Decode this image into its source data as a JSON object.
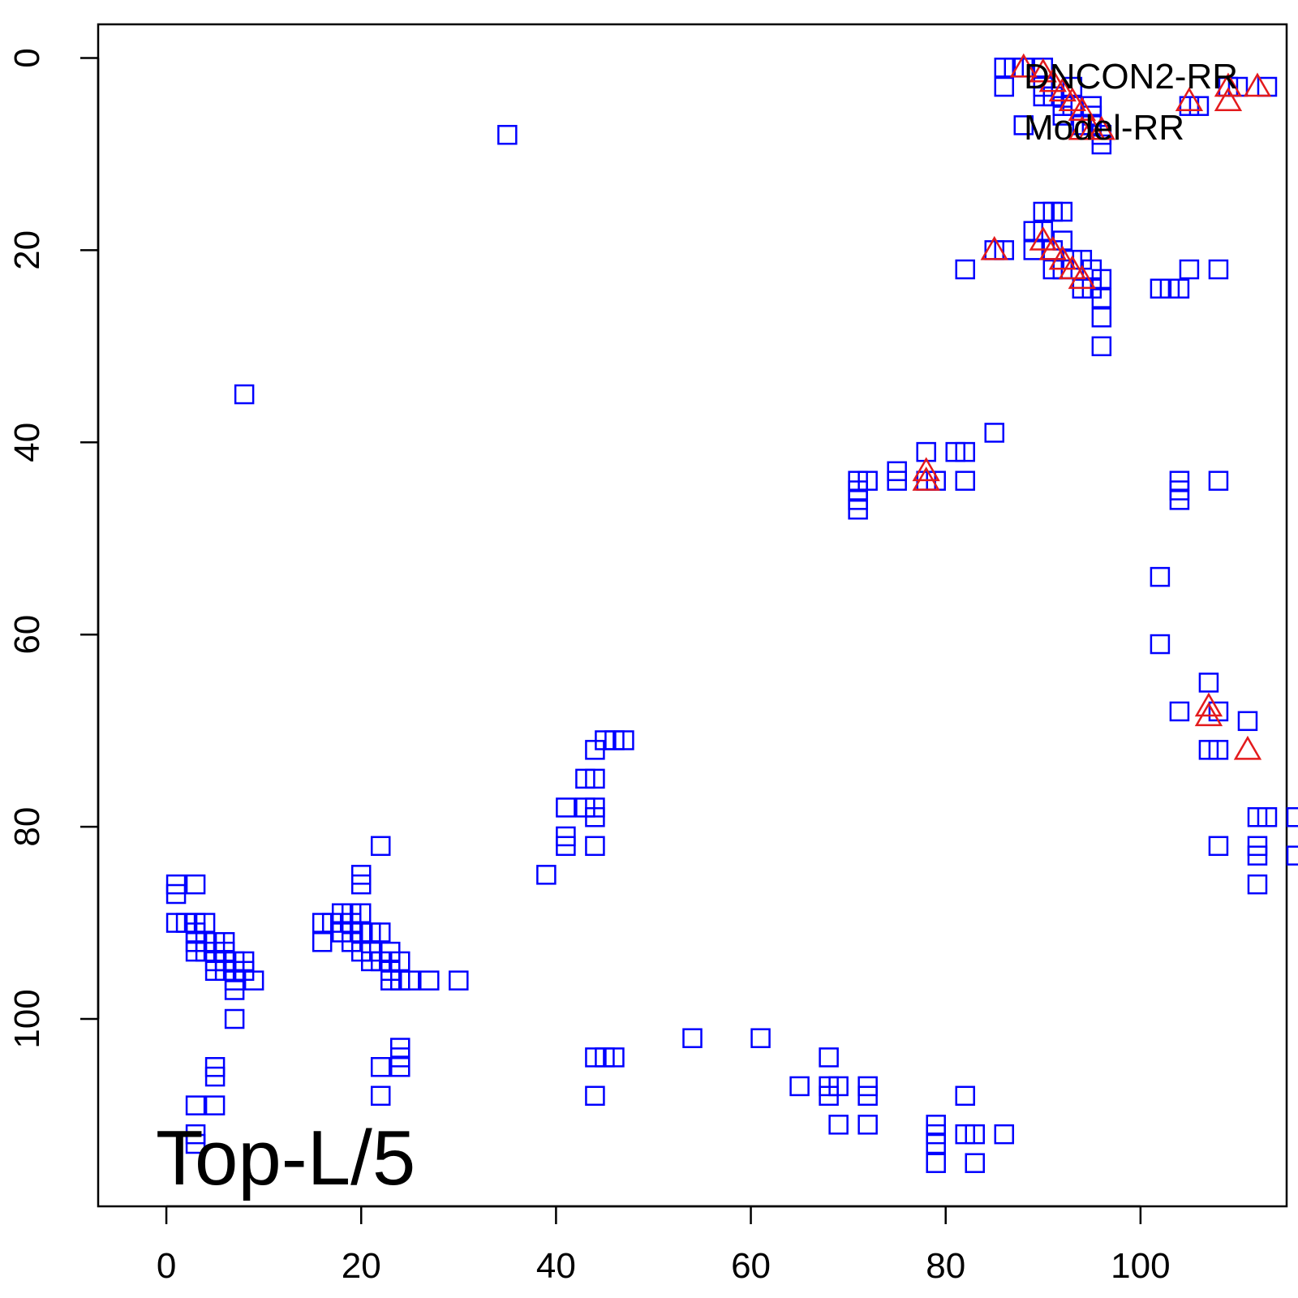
{
  "chart_data": {
    "type": "scatter",
    "title": "",
    "xlabel": "",
    "ylabel": "",
    "xlim": [
      -7,
      115
    ],
    "ylim": [
      -3.5,
      119.5
    ],
    "y_reversed": true,
    "grid": false,
    "legend_position": "top-right",
    "overlay_text": "Top-L/5",
    "x_ticks": [
      "0",
      "20",
      "40",
      "60",
      "80",
      "100"
    ],
    "x_tick_values": [
      0,
      20,
      40,
      60,
      80,
      100
    ],
    "y_ticks": [
      "0",
      "20",
      "40",
      "60",
      "80",
      "100"
    ],
    "y_tick_values": [
      0,
      20,
      40,
      60,
      80,
      100
    ],
    "series": [
      {
        "name": "DNCON2-RR",
        "marker": "square",
        "color": "#0000ff",
        "points": [
          [
            86,
            1
          ],
          [
            87,
            1
          ],
          [
            88,
            1
          ],
          [
            86,
            3
          ],
          [
            88,
            7
          ],
          [
            90,
            1
          ],
          [
            90,
            3
          ],
          [
            90,
            4
          ],
          [
            91,
            4
          ],
          [
            92,
            5
          ],
          [
            92,
            6
          ],
          [
            93,
            3
          ],
          [
            93,
            5
          ],
          [
            94,
            7
          ],
          [
            95,
            5
          ],
          [
            95,
            6
          ],
          [
            95,
            7
          ],
          [
            96,
            8
          ],
          [
            96,
            9
          ],
          [
            105,
            5
          ],
          [
            106,
            5
          ],
          [
            109,
            3
          ],
          [
            110,
            3
          ],
          [
            113,
            3
          ],
          [
            35,
            8
          ],
          [
            8,
            35
          ],
          [
            85,
            20
          ],
          [
            86,
            20
          ],
          [
            82,
            22
          ],
          [
            89,
            18
          ],
          [
            89,
            20
          ],
          [
            90,
            16
          ],
          [
            90,
            18
          ],
          [
            91,
            16
          ],
          [
            91,
            20
          ],
          [
            91,
            22
          ],
          [
            92,
            16
          ],
          [
            92,
            19
          ],
          [
            92,
            22
          ],
          [
            93,
            21
          ],
          [
            94,
            21
          ],
          [
            94,
            24
          ],
          [
            95,
            22
          ],
          [
            95,
            24
          ],
          [
            96,
            23
          ],
          [
            96,
            25
          ],
          [
            96,
            27
          ],
          [
            96,
            30
          ],
          [
            102,
            24
          ],
          [
            103,
            24
          ],
          [
            104,
            24
          ],
          [
            105,
            22
          ],
          [
            108,
            22
          ],
          [
            71,
            44
          ],
          [
            71,
            45
          ],
          [
            71,
            46
          ],
          [
            71,
            47
          ],
          [
            72,
            44
          ],
          [
            75,
            43
          ],
          [
            75,
            44
          ],
          [
            78,
            41
          ],
          [
            78,
            44
          ],
          [
            79,
            44
          ],
          [
            81,
            41
          ],
          [
            82,
            41
          ],
          [
            82,
            44
          ],
          [
            85,
            39
          ],
          [
            104,
            44
          ],
          [
            104,
            45
          ],
          [
            104,
            46
          ],
          [
            108,
            44
          ],
          [
            102,
            54
          ],
          [
            102,
            61
          ],
          [
            107,
            65
          ],
          [
            104,
            68
          ],
          [
            108,
            68
          ],
          [
            111,
            69
          ],
          [
            107,
            72
          ],
          [
            108,
            72
          ],
          [
            112,
            79
          ],
          [
            113,
            79
          ],
          [
            116,
            79
          ],
          [
            108,
            82
          ],
          [
            112,
            82
          ],
          [
            112,
            83
          ],
          [
            116,
            83
          ],
          [
            112,
            86
          ],
          [
            45,
            71
          ],
          [
            46,
            71
          ],
          [
            47,
            71
          ],
          [
            44,
            72
          ],
          [
            43,
            75
          ],
          [
            44,
            75
          ],
          [
            41,
            78
          ],
          [
            43,
            78
          ],
          [
            44,
            78
          ],
          [
            44,
            79
          ],
          [
            41,
            81
          ],
          [
            41,
            82
          ],
          [
            44,
            82
          ],
          [
            39,
            85
          ],
          [
            1,
            86
          ],
          [
            1,
            87
          ],
          [
            3,
            86
          ],
          [
            1,
            90
          ],
          [
            2,
            90
          ],
          [
            3,
            90
          ],
          [
            4,
            90
          ],
          [
            3,
            91
          ],
          [
            3,
            92
          ],
          [
            3,
            93
          ],
          [
            4,
            92
          ],
          [
            4,
            93
          ],
          [
            5,
            92
          ],
          [
            5,
            94
          ],
          [
            5,
            95
          ],
          [
            6,
            92
          ],
          [
            6,
            93
          ],
          [
            6,
            94
          ],
          [
            6,
            95
          ],
          [
            7,
            94
          ],
          [
            7,
            95
          ],
          [
            7,
            96
          ],
          [
            7,
            97
          ],
          [
            8,
            94
          ],
          [
            8,
            95
          ],
          [
            9,
            96
          ],
          [
            7,
            100
          ],
          [
            16,
            90
          ],
          [
            16,
            92
          ],
          [
            17,
            90
          ],
          [
            18,
            89
          ],
          [
            18,
            91
          ],
          [
            19,
            89
          ],
          [
            19,
            90
          ],
          [
            19,
            92
          ],
          [
            20,
            85
          ],
          [
            20,
            86
          ],
          [
            20,
            89
          ],
          [
            20,
            91
          ],
          [
            20,
            93
          ],
          [
            21,
            91
          ],
          [
            21,
            93
          ],
          [
            21,
            94
          ],
          [
            22,
            82
          ],
          [
            22,
            91
          ],
          [
            22,
            94
          ],
          [
            23,
            93
          ],
          [
            23,
            95
          ],
          [
            23,
            96
          ],
          [
            24,
            94
          ],
          [
            24,
            96
          ],
          [
            25,
            96
          ],
          [
            27,
            96
          ],
          [
            30,
            96
          ],
          [
            5,
            105
          ],
          [
            5,
            106
          ],
          [
            3,
            109
          ],
          [
            5,
            109
          ],
          [
            3,
            112
          ],
          [
            3,
            113
          ],
          [
            22,
            105
          ],
          [
            22,
            108
          ],
          [
            24,
            103
          ],
          [
            24,
            104
          ],
          [
            24,
            105
          ],
          [
            44,
            104
          ],
          [
            45,
            104
          ],
          [
            46,
            104
          ],
          [
            44,
            108
          ],
          [
            54,
            102
          ],
          [
            61,
            102
          ],
          [
            65,
            107
          ],
          [
            68,
            104
          ],
          [
            68,
            107
          ],
          [
            68,
            108
          ],
          [
            69,
            107
          ],
          [
            69,
            111
          ],
          [
            72,
            107
          ],
          [
            72,
            108
          ],
          [
            72,
            111
          ],
          [
            79,
            111
          ],
          [
            79,
            112
          ],
          [
            79,
            113
          ],
          [
            82,
            108
          ],
          [
            82,
            112
          ],
          [
            83,
            112
          ],
          [
            83,
            115
          ],
          [
            79,
            115
          ],
          [
            86,
            112
          ]
        ]
      },
      {
        "name": "Model-RR",
        "marker": "triangle",
        "color": "#e31a1c",
        "points": [
          [
            88,
            1
          ],
          [
            90,
            1.5
          ],
          [
            91,
            2.5
          ],
          [
            92,
            3.5
          ],
          [
            93,
            4.5
          ],
          [
            94,
            5.5
          ],
          [
            94,
            7.5
          ],
          [
            95,
            7.5
          ],
          [
            96,
            7.5
          ],
          [
            105,
            4.5
          ],
          [
            109,
            3
          ],
          [
            109,
            4.5
          ],
          [
            112,
            3
          ],
          [
            85,
            20
          ],
          [
            90,
            19
          ],
          [
            91,
            20
          ],
          [
            92,
            21
          ],
          [
            93,
            22
          ],
          [
            94,
            23
          ],
          [
            78,
            43
          ],
          [
            78,
            44
          ],
          [
            107,
            67.5
          ],
          [
            107,
            68.5
          ],
          [
            111,
            72
          ]
        ]
      }
    ]
  }
}
